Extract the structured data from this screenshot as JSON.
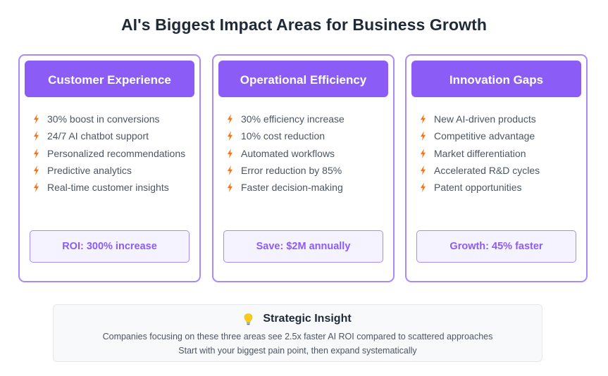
{
  "title": "AI's Biggest Impact Areas for Business Growth",
  "cards": [
    {
      "heading": "Customer Experience",
      "items": [
        "30% boost in conversions",
        "24/7 AI chatbot support",
        "Personalized recommendations",
        "Predictive analytics",
        "Real-time customer insights"
      ],
      "metric": "ROI: 300% increase"
    },
    {
      "heading": "Operational Efficiency",
      "items": [
        "30% efficiency increase",
        "10% cost reduction",
        "Automated workflows",
        "Error reduction by 85%",
        "Faster decision-making"
      ],
      "metric": "Save: $2M annually"
    },
    {
      "heading": "Innovation Gaps",
      "items": [
        "New AI-driven products",
        "Competitive advantage",
        "Market differentiation",
        "Accelerated R&D cycles",
        "Patent opportunities"
      ],
      "metric": "Growth: 45% faster"
    }
  ],
  "insight": {
    "icon": "lightbulb-icon",
    "heading": "Strategic Insight",
    "line1": "Companies focusing on these three areas see 2.5x faster AI ROI compared to scattered approaches",
    "line2": "Start with your biggest pain point, then expand systematically"
  },
  "colors": {
    "accent": "#8b5cf6",
    "border": "#a78bfa",
    "bolt": "#f97316"
  }
}
